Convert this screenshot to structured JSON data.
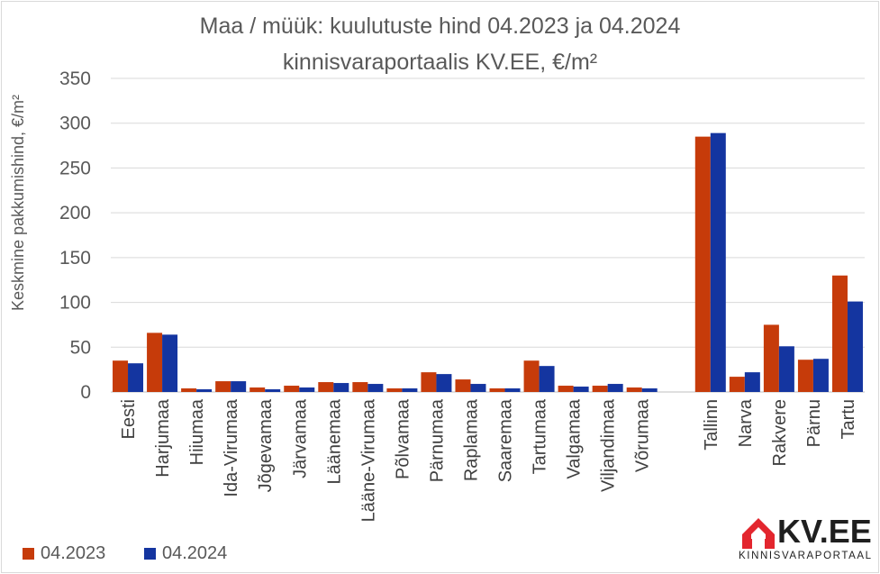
{
  "chart_data": {
    "type": "bar",
    "title_line1": "Maa / müük: kuulutuste hind 04.2023 ja 04.2024",
    "title_line2": "kinnisvaraportaalis KV.EE, €/m²",
    "ylabel": "Keskmine pakkumishind, €/m²",
    "xlabel": "",
    "ylim": [
      0,
      350
    ],
    "yticks": [
      0,
      50,
      100,
      150,
      200,
      250,
      300,
      350
    ],
    "grid": true,
    "legend_position": "bottom-left",
    "categories": [
      "Eesti",
      "Harjumaa",
      "Hiiumaa",
      "Ida-Virumaa",
      "Jõgevamaa",
      "Järvamaa",
      "Läänemaa",
      "Lääne-Virumaa",
      "Põlvamaa",
      "Pärnumaa",
      "Raplamaa",
      "Saaremaa",
      "Tartumaa",
      "Valgamaa",
      "Viljandimaa",
      "Võrumaa",
      "",
      "Tallinn",
      "Narva",
      "Rakvere",
      "Pärnu",
      "Tartu"
    ],
    "series": [
      {
        "name": "04.2023",
        "color": "#c63b0a",
        "values": [
          35,
          66,
          4,
          12,
          5,
          7,
          11,
          11,
          4,
          22,
          14,
          4,
          35,
          7,
          7,
          5,
          null,
          285,
          17,
          75,
          36,
          130
        ]
      },
      {
        "name": "04.2024",
        "color": "#1435a0",
        "values": [
          32,
          64,
          3,
          12,
          3,
          5,
          10,
          9,
          4,
          20,
          9,
          4,
          29,
          6,
          9,
          4,
          null,
          289,
          22,
          51,
          37,
          101
        ]
      }
    ]
  },
  "logo": {
    "name": "KV.EE",
    "tagline": "KINNISVARAPORTAAL",
    "accent_color": "#e3262e"
  }
}
